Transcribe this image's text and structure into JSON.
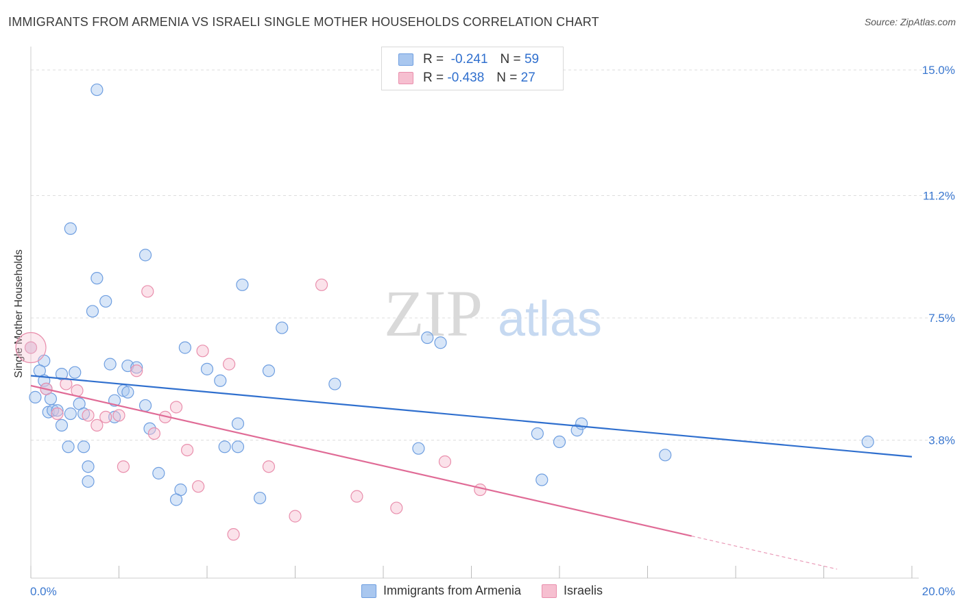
{
  "header": {
    "title": "IMMIGRANTS FROM ARMENIA VS ISRAELI SINGLE MOTHER HOUSEHOLDS CORRELATION CHART",
    "source": "Source: ZipAtlas.com"
  },
  "watermark": {
    "zip": "ZIP",
    "atlas": "atlas"
  },
  "legend": {
    "rows": [
      {
        "r_label": "R =",
        "r_value": "-0.241",
        "n_label": "N =",
        "n_value": "59",
        "color": "#a9c7ef",
        "stroke": "#6e9ee0"
      },
      {
        "r_label": "R =",
        "r_value": "-0.438",
        "n_label": "N =",
        "n_value": "27",
        "color": "#f6bfd0",
        "stroke": "#e98eac"
      }
    ]
  },
  "bottom_legend": {
    "items": [
      {
        "label": "Immigrants from Armenia",
        "color": "#a9c7ef",
        "stroke": "#6e9ee0"
      },
      {
        "label": "Israelis",
        "color": "#f6bfd0",
        "stroke": "#e98eac"
      }
    ]
  },
  "chart_data": {
    "type": "scatter",
    "title": "IMMIGRANTS FROM ARMENIA VS ISRAELI SINGLE MOTHER HOUSEHOLDS CORRELATION CHART",
    "xlabel": "",
    "ylabel": "Single Mother Households",
    "xlim": [
      0,
      20
    ],
    "ylim": [
      0,
      15.5
    ],
    "x_tick_labels": [
      {
        "value": 0,
        "label": "0.0%"
      },
      {
        "value": 20,
        "label": "20.0%"
      }
    ],
    "y_tick_labels": [
      {
        "value": 3.8,
        "label": "3.8%"
      },
      {
        "value": 7.5,
        "label": "7.5%"
      },
      {
        "value": 11.2,
        "label": "11.2%"
      },
      {
        "value": 15.0,
        "label": "15.0%"
      }
    ],
    "x_minor_ticks": [
      0,
      2,
      4,
      6,
      8,
      10,
      12,
      14,
      16,
      18,
      20
    ],
    "series": [
      {
        "name": "Immigrants from Armenia",
        "color": "#a9c7ef",
        "stroke": "#6e9ee0",
        "trend": {
          "x0": 0.0,
          "y0": 5.75,
          "x1": 20.0,
          "y1": 3.3,
          "color": "#2f6fce"
        },
        "points": [
          [
            1.5,
            14.4
          ],
          [
            0.9,
            10.2
          ],
          [
            2.6,
            9.4
          ],
          [
            1.5,
            8.7
          ],
          [
            1.7,
            8.0
          ],
          [
            1.4,
            7.7
          ],
          [
            4.8,
            8.5
          ],
          [
            5.7,
            7.2
          ],
          [
            3.5,
            6.6
          ],
          [
            0.3,
            6.2
          ],
          [
            0.2,
            5.9
          ],
          [
            0.3,
            5.6
          ],
          [
            0.7,
            5.8
          ],
          [
            1.0,
            5.85
          ],
          [
            2.2,
            6.05
          ],
          [
            2.4,
            6.0
          ],
          [
            4.0,
            5.95
          ],
          [
            5.4,
            5.9
          ],
          [
            4.3,
            5.6
          ],
          [
            6.9,
            5.5
          ],
          [
            0.35,
            5.35
          ],
          [
            0.1,
            5.1
          ],
          [
            0.45,
            5.05
          ],
          [
            2.1,
            5.3
          ],
          [
            2.2,
            5.25
          ],
          [
            1.9,
            5.0
          ],
          [
            1.1,
            4.9
          ],
          [
            2.6,
            4.85
          ],
          [
            0.4,
            4.65
          ],
          [
            0.5,
            4.7
          ],
          [
            0.6,
            4.7
          ],
          [
            0.9,
            4.6
          ],
          [
            1.2,
            4.6
          ],
          [
            1.9,
            4.5
          ],
          [
            0.7,
            4.25
          ],
          [
            4.7,
            4.3
          ],
          [
            2.7,
            4.15
          ],
          [
            0.85,
            3.6
          ],
          [
            1.2,
            3.6
          ],
          [
            4.4,
            3.6
          ],
          [
            4.7,
            3.6
          ],
          [
            8.8,
            3.55
          ],
          [
            1.3,
            3.0
          ],
          [
            1.3,
            2.55
          ],
          [
            2.9,
            2.8
          ],
          [
            3.4,
            2.3
          ],
          [
            3.3,
            2.0
          ],
          [
            5.2,
            2.05
          ],
          [
            9.0,
            6.9
          ],
          [
            9.3,
            6.75
          ],
          [
            11.5,
            4.0
          ],
          [
            12.0,
            3.75
          ],
          [
            12.4,
            4.1
          ],
          [
            12.5,
            4.3
          ],
          [
            11.6,
            2.6
          ],
          [
            14.4,
            3.35
          ],
          [
            19.0,
            3.75
          ],
          [
            0.0,
            6.6
          ],
          [
            1.8,
            6.1
          ]
        ]
      },
      {
        "name": "Israelis",
        "color": "#f6bfd0",
        "stroke": "#e98eac",
        "trend": {
          "x0": 0.0,
          "y0": 5.45,
          "x1": 15.0,
          "y1": 0.9,
          "color": "#e06b96",
          "dash_to_x": 18.3
        },
        "points": [
          [
            0.0,
            6.6
          ],
          [
            2.65,
            8.3
          ],
          [
            6.6,
            8.5
          ],
          [
            3.9,
            6.5
          ],
          [
            4.5,
            6.1
          ],
          [
            2.4,
            5.9
          ],
          [
            0.8,
            5.5
          ],
          [
            1.05,
            5.3
          ],
          [
            0.35,
            5.35
          ],
          [
            0.6,
            4.6
          ],
          [
            1.3,
            4.55
          ],
          [
            1.7,
            4.5
          ],
          [
            2.0,
            4.55
          ],
          [
            1.5,
            4.25
          ],
          [
            3.3,
            4.8
          ],
          [
            3.05,
            4.5
          ],
          [
            2.8,
            4.0
          ],
          [
            3.55,
            3.5
          ],
          [
            2.1,
            3.0
          ],
          [
            5.4,
            3.0
          ],
          [
            9.4,
            3.15
          ],
          [
            3.8,
            2.4
          ],
          [
            7.4,
            2.1
          ],
          [
            10.2,
            2.3
          ],
          [
            8.3,
            1.75
          ],
          [
            6.0,
            1.5
          ],
          [
            4.6,
            0.95
          ]
        ]
      }
    ]
  }
}
